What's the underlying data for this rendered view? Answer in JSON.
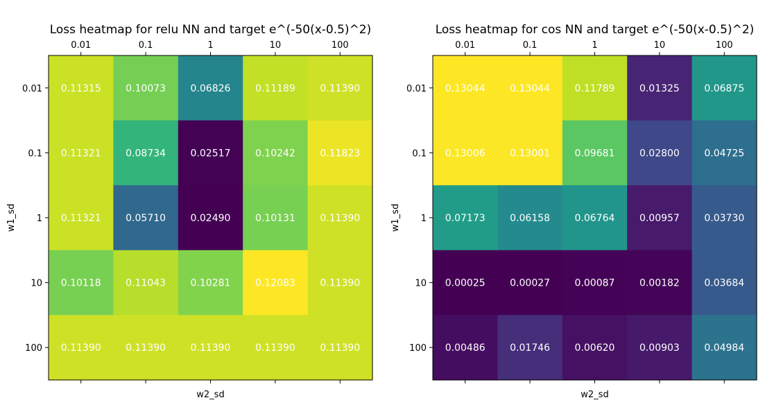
{
  "chart_data": [
    {
      "type": "heatmap",
      "title": "Loss heatmap for relu NN and target e^(-50(x-0.5)^2)",
      "xlabel": "w2_sd",
      "ylabel": "w1_sd",
      "x_ticks": [
        "0.01",
        "0.1",
        "1",
        "10",
        "100"
      ],
      "y_ticks": [
        "0.01",
        "0.1",
        "1",
        "10",
        "100"
      ],
      "x_axis_position": "top",
      "grid": false,
      "colormap": "viridis",
      "values": [
        [
          0.11315,
          0.10073,
          0.06826,
          0.11189,
          0.1139
        ],
        [
          0.11321,
          0.08734,
          0.02517,
          0.10242,
          0.11823
        ],
        [
          0.11321,
          0.0571,
          0.0249,
          0.10131,
          0.1139
        ],
        [
          0.10118,
          0.11043,
          0.10281,
          0.12083,
          0.1139
        ],
        [
          0.1139,
          0.1139,
          0.1139,
          0.1139,
          0.1139
        ]
      ],
      "labels": [
        [
          "0.11315",
          "0.10073",
          "0.06826",
          "0.11189",
          "0.11390"
        ],
        [
          "0.11321",
          "0.08734",
          "0.02517",
          "0.10242",
          "0.11823"
        ],
        [
          "0.11321",
          "0.05710",
          "0.02490",
          "0.10131",
          "0.11390"
        ],
        [
          "0.10118",
          "0.11043",
          "0.10281",
          "0.12083",
          "0.11390"
        ],
        [
          "0.11390",
          "0.11390",
          "0.11390",
          "0.11390",
          "0.11390"
        ]
      ]
    },
    {
      "type": "heatmap",
      "title": "Loss heatmap for cos NN and target e^(-50(x-0.5)^2)",
      "xlabel": "w2_sd",
      "ylabel": "w1_sd",
      "x_ticks": [
        "0.01",
        "0.1",
        "1",
        "10",
        "100"
      ],
      "y_ticks": [
        "0.01",
        "0.1",
        "1",
        "10",
        "100"
      ],
      "x_axis_position": "top",
      "grid": false,
      "colormap": "viridis",
      "values": [
        [
          0.13044,
          0.13044,
          0.11789,
          0.01325,
          0.06875
        ],
        [
          0.13006,
          0.13001,
          0.09681,
          0.028,
          0.04725
        ],
        [
          0.07173,
          0.06158,
          0.06764,
          0.00957,
          0.0373
        ],
        [
          0.00025,
          0.00027,
          0.00087,
          0.00182,
          0.03684
        ],
        [
          0.00486,
          0.01746,
          0.0062,
          0.00903,
          0.04984
        ]
      ],
      "labels": [
        [
          "0.13044",
          "0.13044",
          "0.11789",
          "0.01325",
          "0.06875"
        ],
        [
          "0.13006",
          "0.13001",
          "0.09681",
          "0.02800",
          "0.04725"
        ],
        [
          "0.07173",
          "0.06158",
          "0.06764",
          "0.00957",
          "0.03730"
        ],
        [
          "0.00025",
          "0.00027",
          "0.00087",
          "0.00182",
          "0.03684"
        ],
        [
          "0.00486",
          "0.01746",
          "0.00620",
          "0.00903",
          "0.04984"
        ]
      ]
    }
  ],
  "colors": {
    "cell_text": "#ffffff",
    "axis": "#000000",
    "background": "#ffffff"
  }
}
